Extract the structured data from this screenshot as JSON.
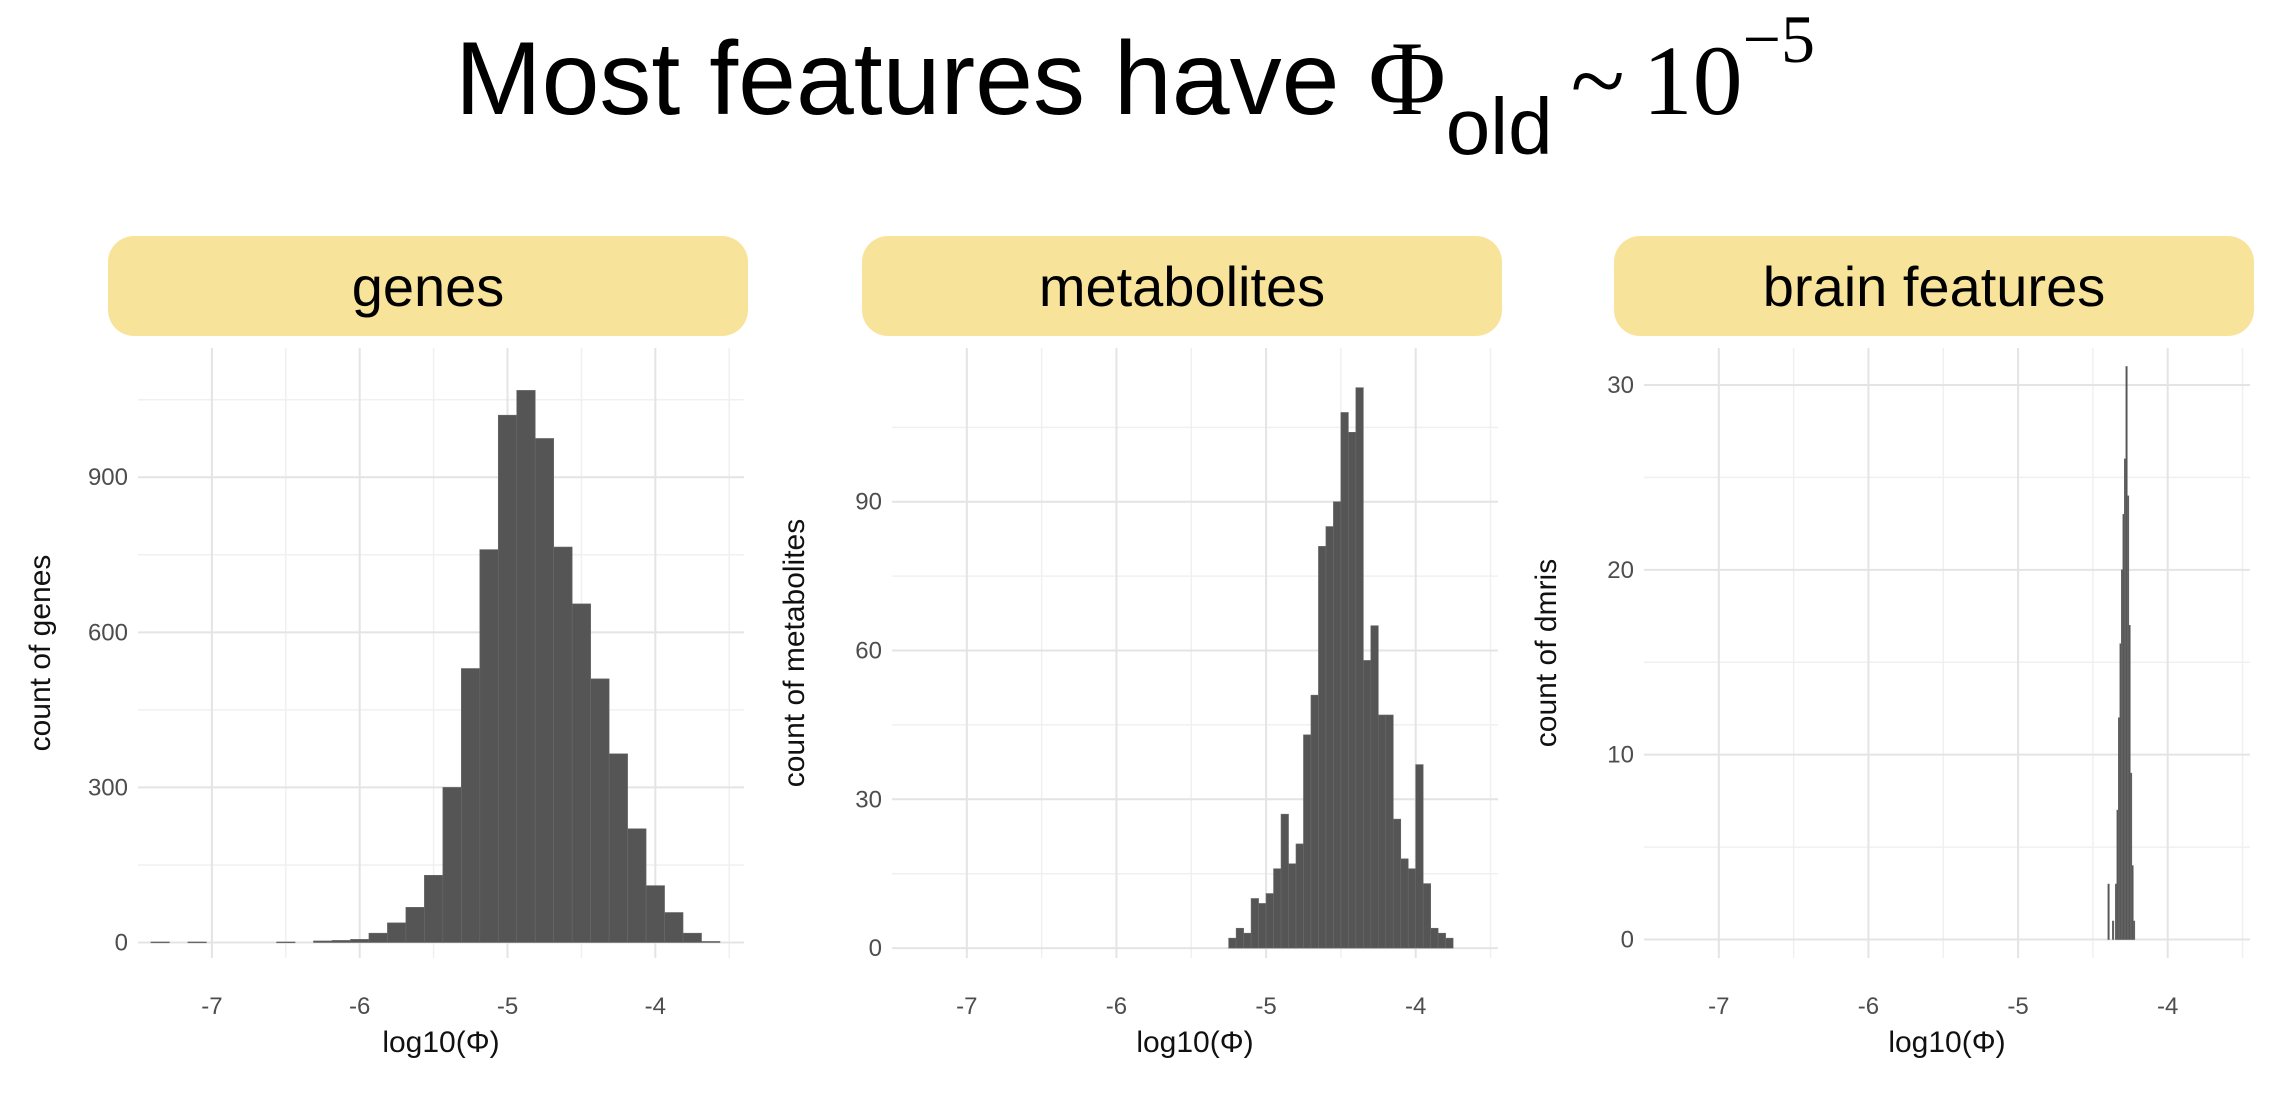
{
  "title": {
    "text": "Most features have ",
    "symbol": "Φ",
    "subscript": "old",
    "relation": "~",
    "base": "10",
    "exponent": "−5"
  },
  "chart_data": [
    {
      "type": "bar",
      "panel_label": "genes",
      "xlabel": "log10(Φ)",
      "ylabel": "count of genes",
      "xlim": [
        -7.5,
        -3.4
      ],
      "ylim": [
        -30,
        1150
      ],
      "xticks": [
        -7,
        -6,
        -5,
        -4
      ],
      "yticks": [
        0,
        300,
        600,
        900
      ],
      "grid": true,
      "bar_color": "#555555",
      "bin_width": 0.125,
      "bins": [
        [
          -7.35,
          1
        ],
        [
          -7.1,
          1
        ],
        [
          -6.5,
          1
        ],
        [
          -6.25,
          3
        ],
        [
          -6.125,
          4
        ],
        [
          -6.0,
          6
        ],
        [
          -5.875,
          18
        ],
        [
          -5.75,
          38
        ],
        [
          -5.625,
          68
        ],
        [
          -5.5,
          130
        ],
        [
          -5.375,
          300
        ],
        [
          -5.25,
          530
        ],
        [
          -5.125,
          760
        ],
        [
          -5.0,
          1020
        ],
        [
          -4.875,
          1068
        ],
        [
          -4.75,
          975
        ],
        [
          -4.625,
          765
        ],
        [
          -4.5,
          655
        ],
        [
          -4.375,
          510
        ],
        [
          -4.25,
          365
        ],
        [
          -4.125,
          220
        ],
        [
          -4.0,
          110
        ],
        [
          -3.875,
          58
        ],
        [
          -3.75,
          18
        ],
        [
          -3.625,
          2
        ]
      ]
    },
    {
      "type": "bar",
      "panel_label": "metabolites",
      "xlabel": "log10(Φ)",
      "ylabel": "count of metabolites",
      "xlim": [
        -7.5,
        -3.45
      ],
      "ylim": [
        -2,
        121
      ],
      "xticks": [
        -7,
        -6,
        -5,
        -4
      ],
      "yticks": [
        0,
        30,
        60,
        90
      ],
      "grid": true,
      "bar_color": "#555555",
      "bin_width": 0.05,
      "bins": [
        [
          -5.225,
          2
        ],
        [
          -5.175,
          4
        ],
        [
          -5.125,
          3
        ],
        [
          -5.075,
          10
        ],
        [
          -5.025,
          9
        ],
        [
          -4.975,
          11
        ],
        [
          -4.925,
          16
        ],
        [
          -4.875,
          27
        ],
        [
          -4.825,
          17
        ],
        [
          -4.775,
          21
        ],
        [
          -4.725,
          43
        ],
        [
          -4.675,
          51
        ],
        [
          -4.625,
          81
        ],
        [
          -4.575,
          85
        ],
        [
          -4.525,
          90
        ],
        [
          -4.475,
          108
        ],
        [
          -4.425,
          104
        ],
        [
          -4.375,
          113
        ],
        [
          -4.325,
          58
        ],
        [
          -4.275,
          65
        ],
        [
          -4.225,
          47
        ],
        [
          -4.175,
          47
        ],
        [
          -4.125,
          26
        ],
        [
          -4.075,
          18
        ],
        [
          -4.025,
          16
        ],
        [
          -3.975,
          37
        ],
        [
          -3.925,
          13
        ],
        [
          -3.875,
          4
        ],
        [
          -3.825,
          3
        ],
        [
          -3.775,
          2
        ]
      ]
    },
    {
      "type": "bar",
      "panel_label": "brain features",
      "xlabel": "log10(Φ)",
      "ylabel": "count of dmris",
      "xlim": [
        -7.5,
        -3.45
      ],
      "ylim": [
        -1,
        32
      ],
      "xticks": [
        -7,
        -6,
        -5,
        -4
      ],
      "yticks": [
        0,
        10,
        20,
        30
      ],
      "grid": true,
      "bar_color": "#555555",
      "bin_width": 0.01,
      "bins": [
        [
          -4.395,
          3
        ],
        [
          -4.365,
          1
        ],
        [
          -4.345,
          3
        ],
        [
          -4.335,
          7
        ],
        [
          -4.325,
          12
        ],
        [
          -4.315,
          16
        ],
        [
          -4.305,
          20
        ],
        [
          -4.295,
          23
        ],
        [
          -4.285,
          26
        ],
        [
          -4.275,
          31
        ],
        [
          -4.265,
          24
        ],
        [
          -4.255,
          17
        ],
        [
          -4.245,
          9
        ],
        [
          -4.235,
          4
        ],
        [
          -4.225,
          1
        ]
      ]
    }
  ]
}
